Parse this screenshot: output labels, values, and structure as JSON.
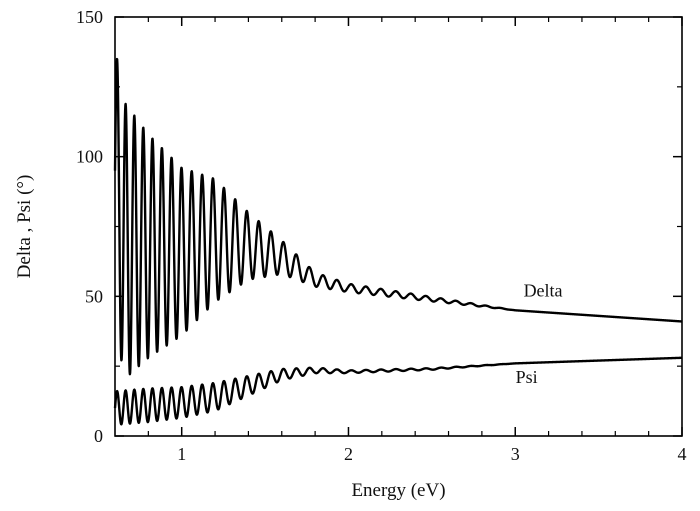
{
  "chart_data": {
    "type": "line",
    "title": "",
    "xlabel": "Energy (eV)",
    "ylabel": "Delta , Psi (°)",
    "xlim": [
      0.6,
      4.0
    ],
    "ylim": [
      0,
      150
    ],
    "x_ticks": [
      1,
      2,
      3,
      4
    ],
    "y_ticks": [
      0,
      50,
      100,
      150
    ],
    "x_tick_labels": [
      "1",
      "2",
      "3",
      "4"
    ],
    "y_tick_labels": [
      "0",
      "50",
      "100",
      "150"
    ],
    "x_minor_step": 0.2,
    "grid": false,
    "legend": "none",
    "series": [
      {
        "name": "Delta",
        "color": "#000000",
        "envelope_x": [
          0.6,
          0.65,
          0.8,
          1.0,
          1.2,
          1.4,
          1.6,
          1.8,
          2.0,
          2.5,
          3.0,
          3.5,
          4.0
        ],
        "envelope_mean": [
          95,
          70,
          68,
          66,
          70,
          68,
          64,
          56,
          53,
          49,
          45,
          43,
          41
        ],
        "envelope_amplitude": [
          45,
          50,
          40,
          30,
          22,
          12,
          6,
          2.5,
          1.5,
          0.8,
          0,
          0,
          0
        ],
        "fringe_period_start_eV": 0.05,
        "fringe_period_end_eV": 0.09
      },
      {
        "name": "Psi",
        "color": "#000000",
        "envelope_x": [
          0.6,
          0.8,
          1.0,
          1.2,
          1.4,
          1.6,
          1.8,
          2.0,
          2.5,
          3.0,
          3.5,
          4.0
        ],
        "envelope_mean": [
          10,
          11,
          12,
          14,
          18,
          22,
          23.5,
          23,
          24,
          26,
          27,
          28
        ],
        "envelope_amplitude": [
          6,
          6,
          5.5,
          5,
          3.5,
          2,
          1,
          0.5,
          0.3,
          0,
          0,
          0
        ],
        "fringe_period_start_eV": 0.05,
        "fringe_period_end_eV": 0.09
      }
    ],
    "annotations": [
      {
        "text": "Delta",
        "x": 3.05,
        "y": 50
      },
      {
        "text": "Psi",
        "x": 3.05,
        "y": 19
      }
    ]
  }
}
